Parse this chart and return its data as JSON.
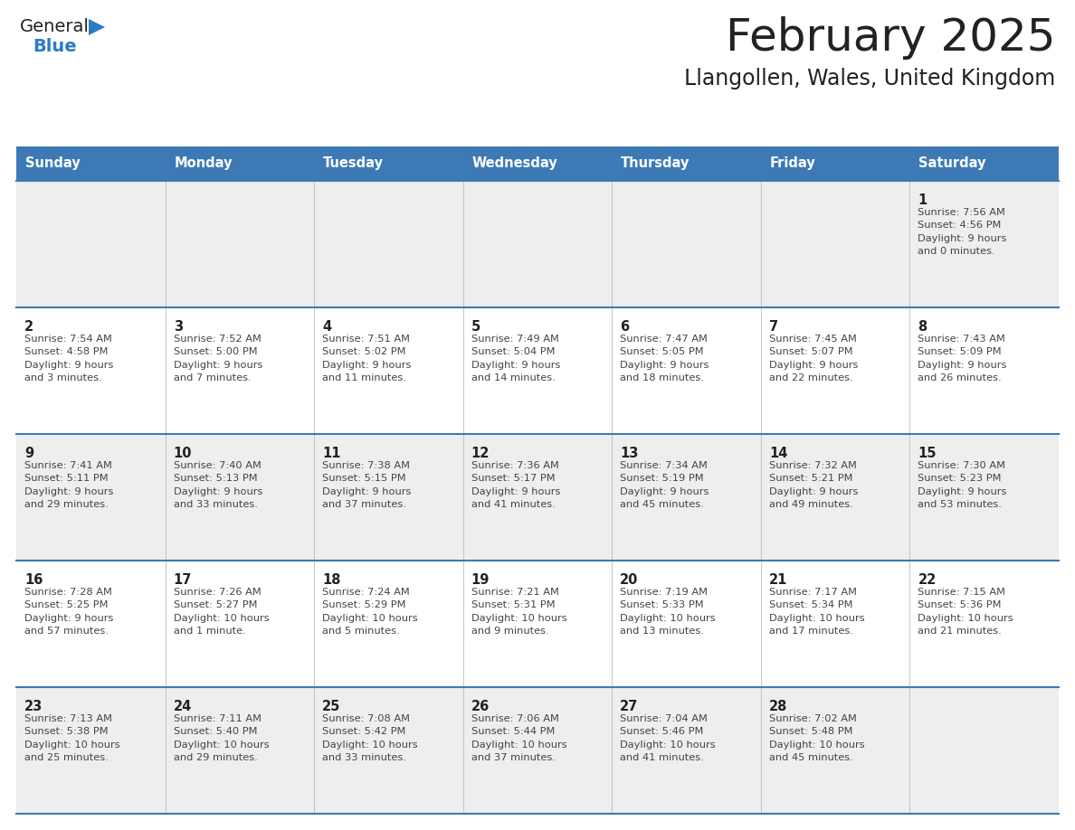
{
  "title": "February 2025",
  "subtitle": "Llangollen, Wales, United Kingdom",
  "days_of_week": [
    "Sunday",
    "Monday",
    "Tuesday",
    "Wednesday",
    "Thursday",
    "Friday",
    "Saturday"
  ],
  "header_bg": "#3d7ab5",
  "header_text_color": "#ffffff",
  "row_bg_odd": "#eeeeee",
  "row_bg_even": "#ffffff",
  "cell_text_color": "#444444",
  "day_num_color": "#222222",
  "grid_line_color": "#3d7ab5",
  "title_color": "#222222",
  "subtitle_color": "#222222",
  "logo_general_color": "#222222",
  "logo_blue_color": "#2b7bc4",
  "weeks": [
    [
      {
        "day": null,
        "info": null
      },
      {
        "day": null,
        "info": null
      },
      {
        "day": null,
        "info": null
      },
      {
        "day": null,
        "info": null
      },
      {
        "day": null,
        "info": null
      },
      {
        "day": null,
        "info": null
      },
      {
        "day": 1,
        "info": "Sunrise: 7:56 AM\nSunset: 4:56 PM\nDaylight: 9 hours\nand 0 minutes."
      }
    ],
    [
      {
        "day": 2,
        "info": "Sunrise: 7:54 AM\nSunset: 4:58 PM\nDaylight: 9 hours\nand 3 minutes."
      },
      {
        "day": 3,
        "info": "Sunrise: 7:52 AM\nSunset: 5:00 PM\nDaylight: 9 hours\nand 7 minutes."
      },
      {
        "day": 4,
        "info": "Sunrise: 7:51 AM\nSunset: 5:02 PM\nDaylight: 9 hours\nand 11 minutes."
      },
      {
        "day": 5,
        "info": "Sunrise: 7:49 AM\nSunset: 5:04 PM\nDaylight: 9 hours\nand 14 minutes."
      },
      {
        "day": 6,
        "info": "Sunrise: 7:47 AM\nSunset: 5:05 PM\nDaylight: 9 hours\nand 18 minutes."
      },
      {
        "day": 7,
        "info": "Sunrise: 7:45 AM\nSunset: 5:07 PM\nDaylight: 9 hours\nand 22 minutes."
      },
      {
        "day": 8,
        "info": "Sunrise: 7:43 AM\nSunset: 5:09 PM\nDaylight: 9 hours\nand 26 minutes."
      }
    ],
    [
      {
        "day": 9,
        "info": "Sunrise: 7:41 AM\nSunset: 5:11 PM\nDaylight: 9 hours\nand 29 minutes."
      },
      {
        "day": 10,
        "info": "Sunrise: 7:40 AM\nSunset: 5:13 PM\nDaylight: 9 hours\nand 33 minutes."
      },
      {
        "day": 11,
        "info": "Sunrise: 7:38 AM\nSunset: 5:15 PM\nDaylight: 9 hours\nand 37 minutes."
      },
      {
        "day": 12,
        "info": "Sunrise: 7:36 AM\nSunset: 5:17 PM\nDaylight: 9 hours\nand 41 minutes."
      },
      {
        "day": 13,
        "info": "Sunrise: 7:34 AM\nSunset: 5:19 PM\nDaylight: 9 hours\nand 45 minutes."
      },
      {
        "day": 14,
        "info": "Sunrise: 7:32 AM\nSunset: 5:21 PM\nDaylight: 9 hours\nand 49 minutes."
      },
      {
        "day": 15,
        "info": "Sunrise: 7:30 AM\nSunset: 5:23 PM\nDaylight: 9 hours\nand 53 minutes."
      }
    ],
    [
      {
        "day": 16,
        "info": "Sunrise: 7:28 AM\nSunset: 5:25 PM\nDaylight: 9 hours\nand 57 minutes."
      },
      {
        "day": 17,
        "info": "Sunrise: 7:26 AM\nSunset: 5:27 PM\nDaylight: 10 hours\nand 1 minute."
      },
      {
        "day": 18,
        "info": "Sunrise: 7:24 AM\nSunset: 5:29 PM\nDaylight: 10 hours\nand 5 minutes."
      },
      {
        "day": 19,
        "info": "Sunrise: 7:21 AM\nSunset: 5:31 PM\nDaylight: 10 hours\nand 9 minutes."
      },
      {
        "day": 20,
        "info": "Sunrise: 7:19 AM\nSunset: 5:33 PM\nDaylight: 10 hours\nand 13 minutes."
      },
      {
        "day": 21,
        "info": "Sunrise: 7:17 AM\nSunset: 5:34 PM\nDaylight: 10 hours\nand 17 minutes."
      },
      {
        "day": 22,
        "info": "Sunrise: 7:15 AM\nSunset: 5:36 PM\nDaylight: 10 hours\nand 21 minutes."
      }
    ],
    [
      {
        "day": 23,
        "info": "Sunrise: 7:13 AM\nSunset: 5:38 PM\nDaylight: 10 hours\nand 25 minutes."
      },
      {
        "day": 24,
        "info": "Sunrise: 7:11 AM\nSunset: 5:40 PM\nDaylight: 10 hours\nand 29 minutes."
      },
      {
        "day": 25,
        "info": "Sunrise: 7:08 AM\nSunset: 5:42 PM\nDaylight: 10 hours\nand 33 minutes."
      },
      {
        "day": 26,
        "info": "Sunrise: 7:06 AM\nSunset: 5:44 PM\nDaylight: 10 hours\nand 37 minutes."
      },
      {
        "day": 27,
        "info": "Sunrise: 7:04 AM\nSunset: 5:46 PM\nDaylight: 10 hours\nand 41 minutes."
      },
      {
        "day": 28,
        "info": "Sunrise: 7:02 AM\nSunset: 5:48 PM\nDaylight: 10 hours\nand 45 minutes."
      },
      {
        "day": null,
        "info": null
      }
    ]
  ]
}
